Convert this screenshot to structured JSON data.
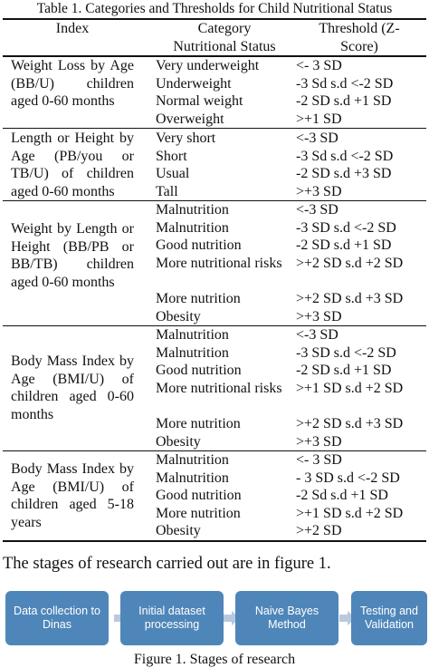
{
  "table": {
    "caption": "Table 1. Categories and Thresholds for Child Nutritional Status",
    "headers": {
      "index": "Index",
      "category_line1": "Category",
      "category_line2": "Nutritional Status",
      "threshold_line1": "Threshold (Z-",
      "threshold_line2": "Score)"
    },
    "groups": [
      {
        "index": "Weight Loss by Age (BB/U) children aged 0-60 months",
        "rows": [
          {
            "category": "Very underweight",
            "threshold": "<- 3 SD"
          },
          {
            "category": "Underweight",
            "threshold": "-3 Sd s.d <-2 SD"
          },
          {
            "category": "Normal weight",
            "threshold": "-2 SD s.d +1 SD"
          },
          {
            "category": "Overweight",
            "threshold": ">+1 SD"
          }
        ]
      },
      {
        "index": "Length or Height by Age (PB/you or TB/U) of children aged 0-60 months",
        "rows": [
          {
            "category": "Very short",
            "threshold": "<-3 SD"
          },
          {
            "category": "Short",
            "threshold": "-3 Sd s.d <-2 SD"
          },
          {
            "category": "Usual",
            "threshold": "-2 SD s.d +3 SD"
          },
          {
            "category": "Tall",
            "threshold": ">+3 SD"
          }
        ]
      },
      {
        "index": "Weight by Length or Height (BB/PB or BB/TB) children aged 0-60 months",
        "rows": [
          {
            "category": "Malnutrition",
            "threshold": "<-3 SD"
          },
          {
            "category": "Malnutrition",
            "threshold": "-3 SD s.d <-2 SD"
          },
          {
            "category": "Good nutrition",
            "threshold": "-2 SD s.d +1 SD"
          },
          {
            "category": "More nutritional risks",
            "threshold": ">+2 SD s.d +2 SD"
          },
          {
            "category": "More nutrition",
            "threshold": ">+2 SD s.d +3 SD"
          },
          {
            "category": "Obesity",
            "threshold": ">+3 SD"
          }
        ]
      },
      {
        "index": "Body Mass Index by Age (BMI/U) of children aged 0-60 months",
        "rows": [
          {
            "category": "Malnutrition",
            "threshold": "<-3 SD"
          },
          {
            "category": "Malnutrition",
            "threshold": "-3 SD s.d <-2 SD"
          },
          {
            "category": "Good nutrition",
            "threshold": "-2 SD s.d +1 SD"
          },
          {
            "category": "More nutritional risks",
            "threshold": ">+1 SD s.d +2 SD"
          },
          {
            "category": "More nutrition",
            "threshold": ">+2 SD s.d +3 SD"
          },
          {
            "category": "Obesity",
            "threshold": ">+3 SD"
          }
        ]
      },
      {
        "index": "Body Mass Index by Age (BMI/U) of children aged 5-18 years",
        "rows": [
          {
            "category": "Malnutrition",
            "threshold": "<- 3 SD"
          },
          {
            "category": "Malnutrition",
            "threshold": "- 3 SD s.d <-2 SD"
          },
          {
            "category": "Good nutrition",
            "threshold": "-2 Sd s.d +1 SD"
          },
          {
            "category": "More nutrition",
            "threshold": ">+1 SD s.d +2 SD"
          },
          {
            "category": "Obesity",
            "threshold": ">+2 SD"
          }
        ]
      }
    ]
  },
  "body_text": "The stages of research carried out are in figure 1.",
  "figure": {
    "steps": [
      "Data collection to Dinas",
      "Initial dataset processing",
      "Naive Bayes Method",
      "Testing and Validation"
    ],
    "box_color": "#4f86b9",
    "arrow_color": "#b8c9de",
    "caption": "Figure 1. Stages of research"
  }
}
